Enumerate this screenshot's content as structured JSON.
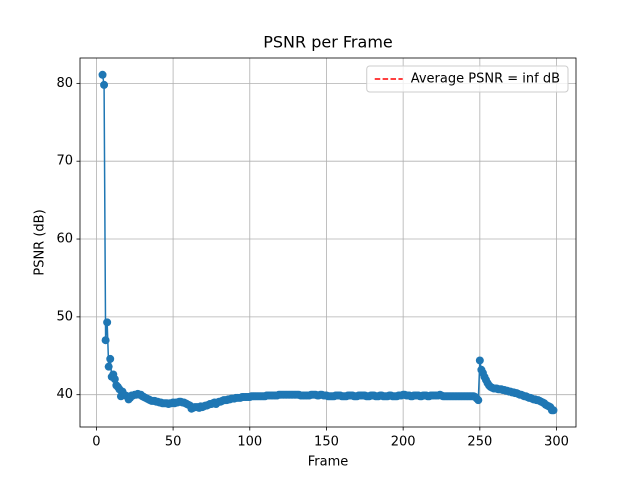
{
  "chart_data": {
    "type": "line",
    "title": "PSNR per Frame",
    "x_label": "Frame",
    "y_label": "PSNR (dB)",
    "x": [
      4,
      5,
      6,
      7,
      8,
      9,
      10,
      11,
      12,
      13,
      14,
      15,
      16,
      17,
      18,
      19,
      20,
      21,
      22,
      23,
      24,
      25,
      26,
      27,
      28,
      29,
      30,
      31,
      32,
      33,
      34,
      35,
      36,
      37,
      38,
      39,
      40,
      41,
      42,
      43,
      44,
      45,
      46,
      47,
      48,
      49,
      50,
      51,
      52,
      53,
      54,
      55,
      56,
      57,
      58,
      59,
      60,
      61,
      62,
      63,
      64,
      65,
      66,
      67,
      68,
      69,
      70,
      71,
      72,
      73,
      74,
      75,
      76,
      77,
      78,
      79,
      80,
      81,
      82,
      83,
      84,
      85,
      86,
      87,
      88,
      89,
      90,
      91,
      92,
      93,
      94,
      95,
      96,
      97,
      98,
      99,
      100,
      101,
      102,
      103,
      104,
      105,
      106,
      107,
      108,
      109,
      110,
      111,
      112,
      113,
      114,
      115,
      116,
      117,
      118,
      119,
      120,
      121,
      122,
      123,
      124,
      125,
      126,
      127,
      128,
      129,
      130,
      131,
      132,
      133,
      134,
      135,
      136,
      137,
      138,
      139,
      140,
      141,
      142,
      143,
      144,
      145,
      146,
      147,
      148,
      149,
      150,
      151,
      152,
      153,
      154,
      155,
      156,
      157,
      158,
      159,
      160,
      161,
      162,
      163,
      164,
      165,
      166,
      167,
      168,
      169,
      170,
      171,
      172,
      173,
      174,
      175,
      176,
      177,
      178,
      179,
      180,
      181,
      182,
      183,
      184,
      185,
      186,
      187,
      188,
      189,
      190,
      191,
      192,
      193,
      194,
      195,
      196,
      197,
      198,
      199,
      200,
      201,
      202,
      203,
      204,
      205,
      206,
      207,
      208,
      209,
      210,
      211,
      212,
      213,
      214,
      215,
      216,
      217,
      218,
      219,
      220,
      221,
      222,
      223,
      224,
      225,
      226,
      227,
      228,
      229,
      230,
      231,
      232,
      233,
      234,
      235,
      236,
      237,
      238,
      239,
      240,
      241,
      242,
      243,
      244,
      245,
      246,
      247,
      248,
      249,
      250,
      251,
      252,
      253,
      254,
      255,
      256,
      257,
      258,
      259,
      260,
      261,
      262,
      263,
      264,
      265,
      266,
      267,
      268,
      269,
      270,
      271,
      272,
      273,
      274,
      275,
      276,
      277,
      278,
      279,
      280,
      281,
      282,
      283,
      284,
      285,
      286,
      287,
      288,
      289,
      290,
      291,
      292,
      293,
      294,
      295,
      296,
      297,
      298
    ],
    "series": [
      {
        "color": "#1f77b4",
        "values": [
          81.1,
          79.8,
          47.0,
          49.3,
          43.6,
          44.6,
          42.3,
          42.6,
          42.0,
          41.2,
          41.0,
          40.7,
          39.8,
          40.4,
          40.0,
          39.9,
          39.8,
          39.4,
          39.6,
          39.9,
          39.9,
          40.0,
          40.0,
          40.1,
          40.0,
          40.0,
          39.8,
          39.7,
          39.6,
          39.5,
          39.4,
          39.3,
          39.2,
          39.2,
          39.2,
          39.1,
          39.1,
          39.0,
          39.0,
          38.9,
          38.9,
          38.9,
          38.9,
          38.8,
          38.9,
          38.9,
          39.0,
          38.9,
          39.0,
          39.0,
          39.1,
          39.1,
          39.0,
          39.0,
          38.9,
          38.8,
          38.7,
          38.6,
          38.2,
          38.3,
          38.4,
          38.4,
          38.4,
          38.3,
          38.5,
          38.4,
          38.5,
          38.6,
          38.6,
          38.7,
          38.8,
          38.8,
          38.9,
          39.0,
          38.8,
          39.0,
          39.1,
          39.1,
          39.2,
          39.3,
          39.3,
          39.3,
          39.4,
          39.4,
          39.5,
          39.5,
          39.5,
          39.6,
          39.6,
          39.6,
          39.6,
          39.7,
          39.7,
          39.7,
          39.7,
          39.7,
          39.7,
          39.8,
          39.8,
          39.8,
          39.8,
          39.8,
          39.8,
          39.8,
          39.8,
          39.8,
          39.8,
          39.9,
          39.9,
          39.9,
          39.9,
          39.9,
          39.9,
          39.9,
          39.9,
          40.0,
          40.0,
          40.0,
          40.0,
          40.0,
          40.0,
          40.0,
          40.0,
          40.0,
          40.0,
          40.0,
          40.0,
          40.0,
          40.0,
          39.9,
          39.9,
          39.9,
          39.9,
          39.9,
          39.9,
          39.9,
          40.0,
          40.0,
          40.0,
          40.0,
          39.9,
          39.9,
          40.0,
          40.0,
          39.9,
          39.9,
          39.9,
          39.8,
          39.8,
          39.8,
          39.8,
          39.8,
          39.9,
          39.9,
          39.9,
          39.9,
          39.8,
          39.8,
          39.8,
          39.8,
          39.9,
          39.9,
          39.9,
          39.9,
          39.8,
          39.8,
          39.8,
          39.9,
          39.9,
          39.9,
          39.9,
          39.9,
          39.8,
          39.8,
          39.8,
          39.9,
          39.9,
          39.9,
          39.8,
          39.8,
          39.8,
          39.9,
          39.9,
          39.8,
          39.8,
          39.8,
          39.8,
          39.9,
          39.9,
          39.8,
          39.8,
          39.8,
          39.8,
          39.9,
          39.9,
          39.9,
          40.0,
          40.0,
          39.9,
          39.9,
          39.9,
          39.8,
          39.8,
          39.9,
          39.9,
          39.9,
          39.9,
          39.8,
          39.8,
          39.9,
          39.9,
          39.9,
          39.8,
          39.8,
          39.9,
          39.9,
          39.9,
          39.9,
          39.9,
          39.9,
          40.0,
          39.9,
          39.8,
          39.8,
          39.8,
          39.8,
          39.8,
          39.8,
          39.8,
          39.8,
          39.8,
          39.8,
          39.8,
          39.8,
          39.8,
          39.8,
          39.8,
          39.8,
          39.8,
          39.8,
          39.8,
          39.8,
          39.8,
          39.7,
          39.5,
          39.3,
          44.4,
          43.2,
          42.8,
          42.3,
          41.9,
          41.5,
          41.2,
          41.0,
          40.9,
          40.8,
          40.8,
          40.8,
          40.7,
          40.7,
          40.7,
          40.6,
          40.6,
          40.5,
          40.5,
          40.4,
          40.4,
          40.3,
          40.3,
          40.2,
          40.2,
          40.1,
          40.0,
          40.0,
          39.9,
          39.8,
          39.8,
          39.7,
          39.6,
          39.6,
          39.5,
          39.4,
          39.4,
          39.3,
          39.3,
          39.2,
          39.1,
          39.0,
          38.9,
          38.7,
          38.6,
          38.5,
          38.4,
          38.0,
          38.0
        ]
      }
    ],
    "reference_lines": [
      {
        "label": "Average PSNR = inf dB",
        "color": "#ff0000",
        "dashed": true
      }
    ],
    "legend": "upper right",
    "xlim": [
      -10.7,
      312.7
    ],
    "ylim": [
      35.85,
      83.26
    ],
    "xticks": [
      0,
      50,
      100,
      150,
      200,
      250,
      300
    ],
    "yticks": [
      40,
      50,
      60,
      70,
      80
    ],
    "grid": true
  }
}
